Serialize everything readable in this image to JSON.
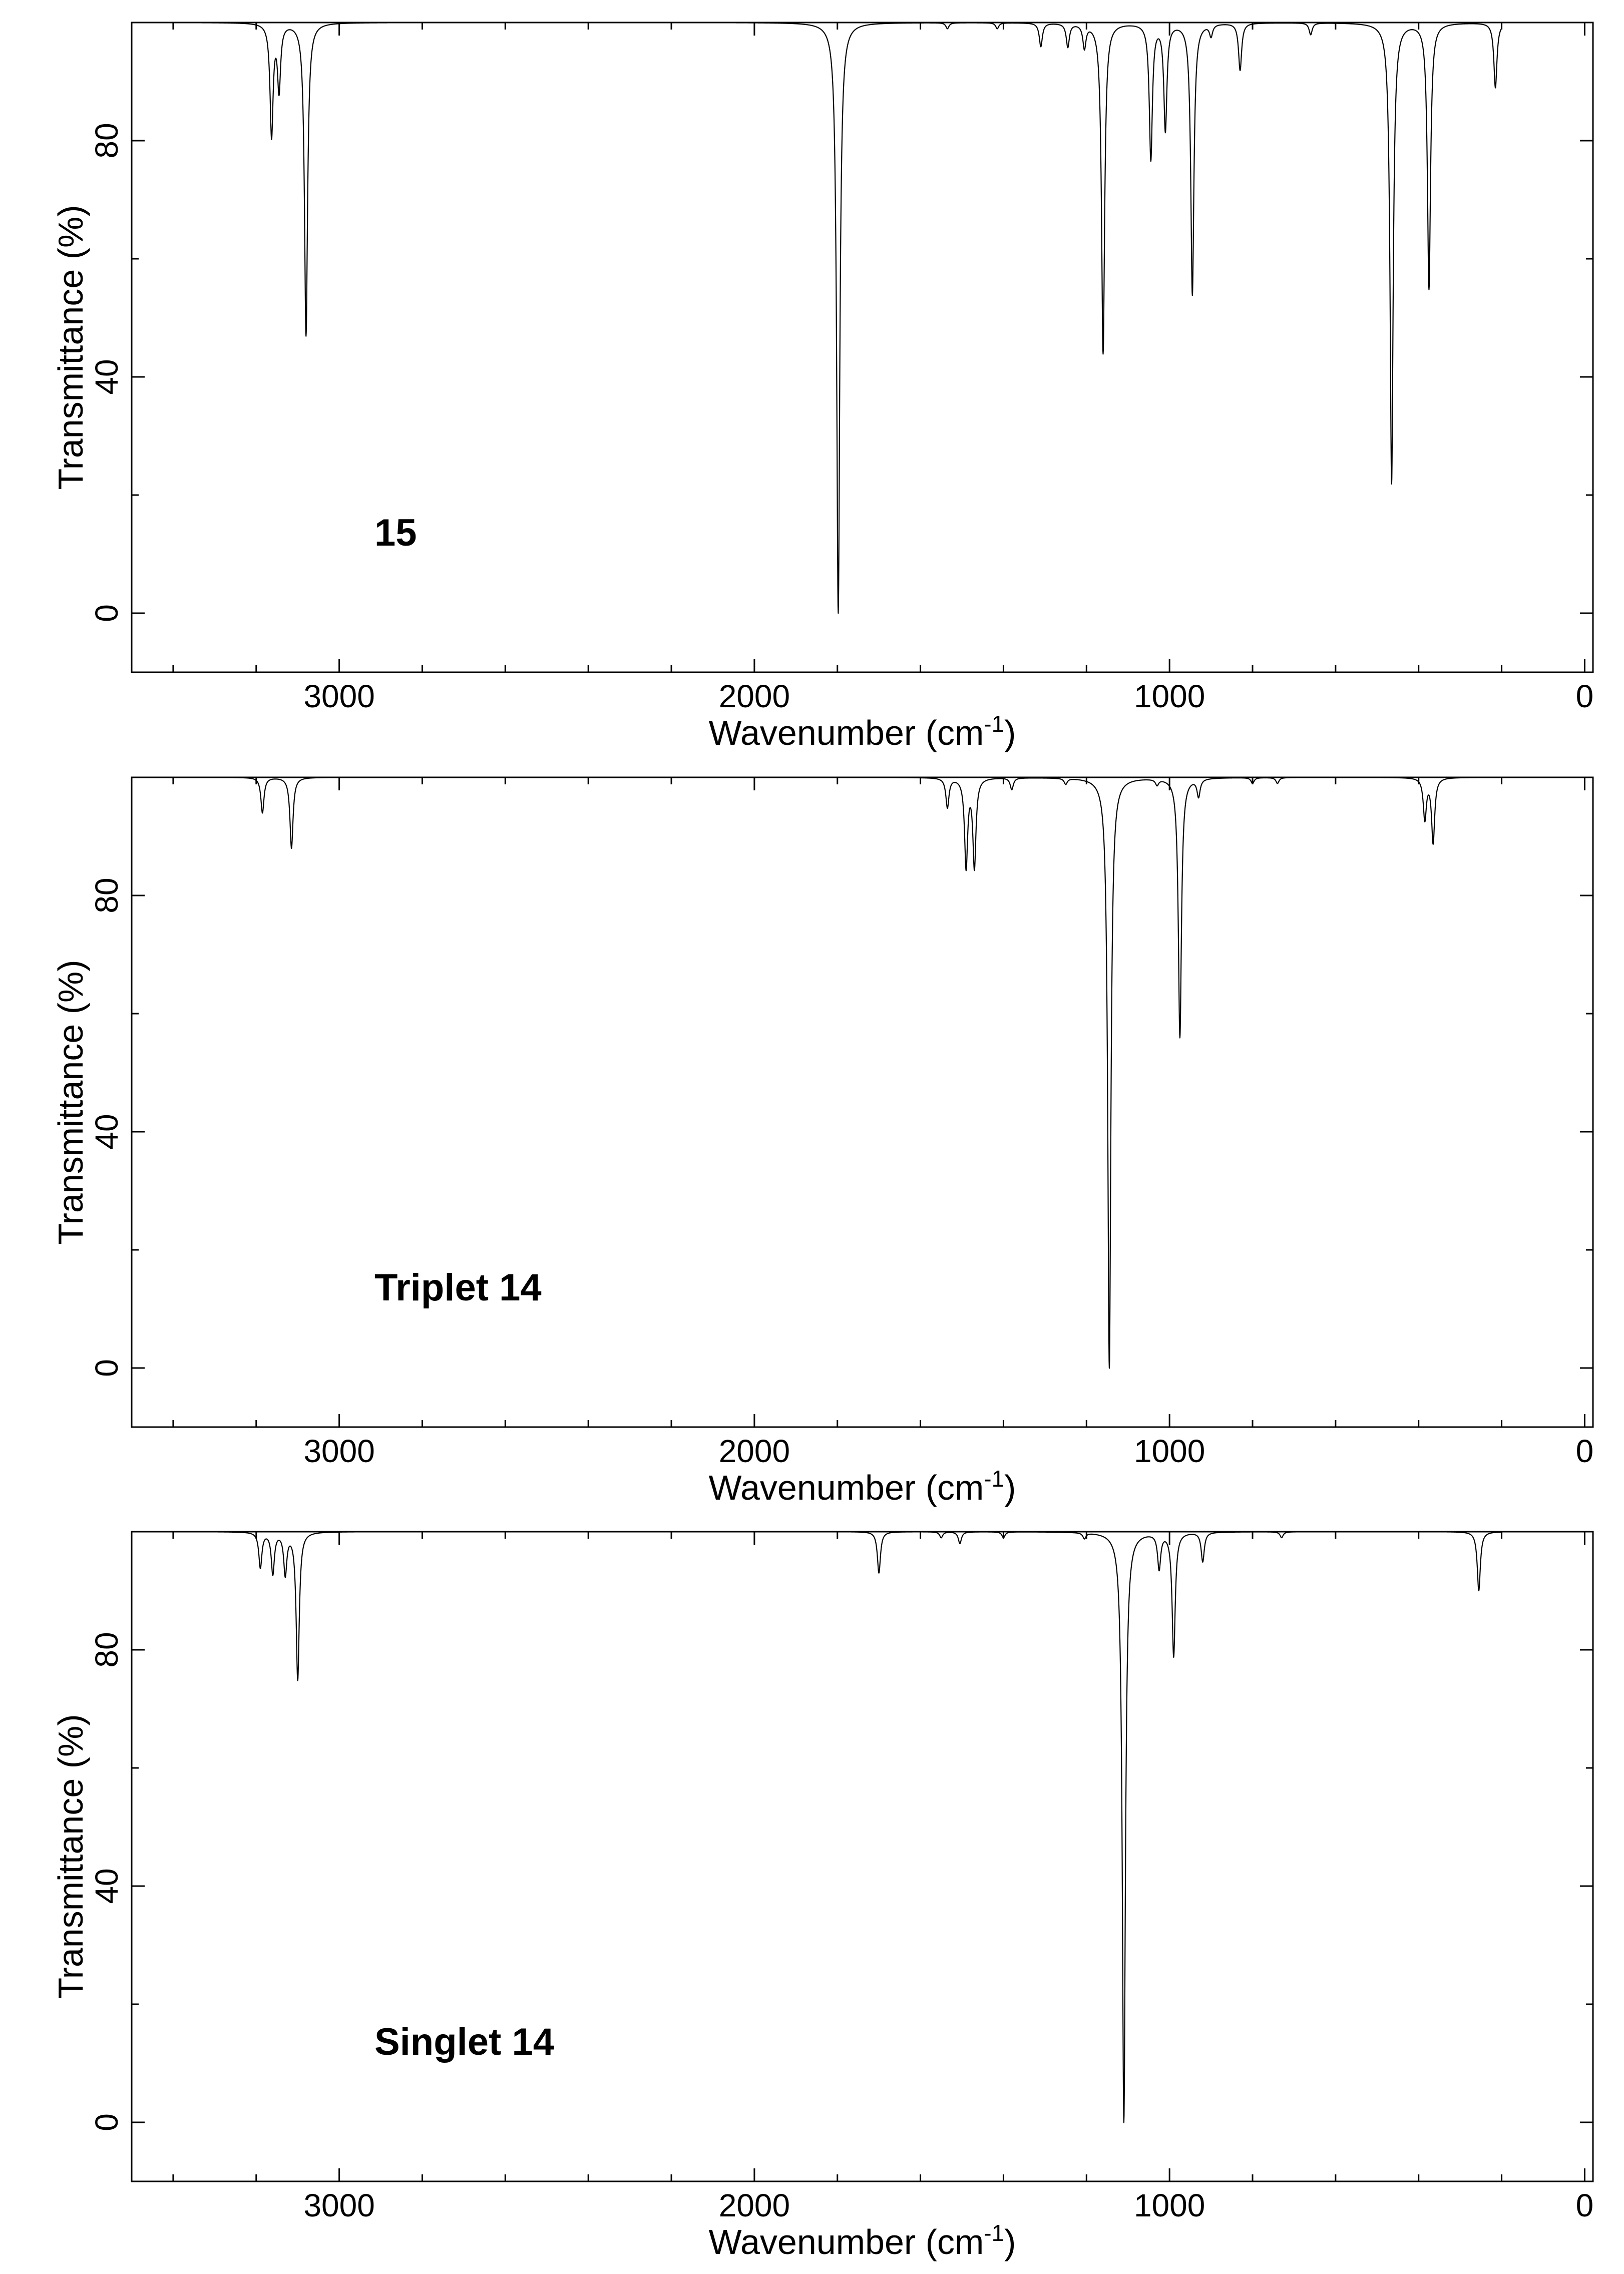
{
  "chart_data": [
    {
      "type": "line",
      "label": "15",
      "xlabel": "Wavenumber (cm-1)",
      "ylabel": "Transmittance (%)",
      "xlim": [
        3500,
        -20
      ],
      "ylim": [
        -10,
        100
      ],
      "xticks": [
        3000,
        2000,
        1000,
        0
      ],
      "yticks": [
        0,
        40,
        80
      ],
      "grid": false,
      "peaks": [
        {
          "x": 3163,
          "y": 81
        },
        {
          "x": 3145,
          "y": 89
        },
        {
          "x": 3080,
          "y": 47
        },
        {
          "x": 1798,
          "y": 0
        },
        {
          "x": 1535,
          "y": 99
        },
        {
          "x": 1415,
          "y": 99
        },
        {
          "x": 1310,
          "y": 96
        },
        {
          "x": 1245,
          "y": 96
        },
        {
          "x": 1205,
          "y": 96
        },
        {
          "x": 1160,
          "y": 44
        },
        {
          "x": 1045,
          "y": 77
        },
        {
          "x": 1010,
          "y": 82
        },
        {
          "x": 945,
          "y": 54
        },
        {
          "x": 900,
          "y": 98
        },
        {
          "x": 830,
          "y": 92
        },
        {
          "x": 660,
          "y": 98
        },
        {
          "x": 465,
          "y": 22
        },
        {
          "x": 375,
          "y": 55
        },
        {
          "x": 215,
          "y": 89
        }
      ]
    },
    {
      "type": "line",
      "label": "Triplet 14",
      "xlabel": "Wavenumber (cm-1)",
      "ylabel": "Transmittance (%)",
      "xlim": [
        3500,
        -20
      ],
      "ylim": [
        -10,
        100
      ],
      "xticks": [
        3000,
        2000,
        1000,
        0
      ],
      "yticks": [
        0,
        40,
        80
      ],
      "grid": false,
      "peaks": [
        {
          "x": 3185,
          "y": 94
        },
        {
          "x": 3115,
          "y": 88
        },
        {
          "x": 1535,
          "y": 95
        },
        {
          "x": 1490,
          "y": 85
        },
        {
          "x": 1470,
          "y": 85
        },
        {
          "x": 1380,
          "y": 98
        },
        {
          "x": 1250,
          "y": 99
        },
        {
          "x": 1145,
          "y": 0
        },
        {
          "x": 1030,
          "y": 99
        },
        {
          "x": 975,
          "y": 56
        },
        {
          "x": 930,
          "y": 97
        },
        {
          "x": 800,
          "y": 99
        },
        {
          "x": 740,
          "y": 99
        },
        {
          "x": 385,
          "y": 93
        },
        {
          "x": 365,
          "y": 89
        },
        {
          "x": 170,
          "y": 99
        }
      ]
    },
    {
      "type": "line",
      "label": "Singlet 14",
      "xlabel": "Wavenumber (cm-1)",
      "ylabel": "Transmittance (%)",
      "xlim": [
        3500,
        -20
      ],
      "ylim": [
        -10,
        100
      ],
      "xticks": [
        3000,
        2000,
        1000,
        0
      ],
      "yticks": [
        0,
        40,
        80
      ],
      "grid": false,
      "peaks": [
        {
          "x": 3190,
          "y": 94
        },
        {
          "x": 3160,
          "y": 93
        },
        {
          "x": 3130,
          "y": 93
        },
        {
          "x": 3100,
          "y": 75
        },
        {
          "x": 1700,
          "y": 93
        },
        {
          "x": 1550,
          "y": 99
        },
        {
          "x": 1505,
          "y": 98
        },
        {
          "x": 1400,
          "y": 99
        },
        {
          "x": 1205,
          "y": 99
        },
        {
          "x": 1110,
          "y": 0
        },
        {
          "x": 1025,
          "y": 94
        },
        {
          "x": 990,
          "y": 79
        },
        {
          "x": 920,
          "y": 95
        },
        {
          "x": 730,
          "y": 99
        },
        {
          "x": 255,
          "y": 90
        }
      ]
    }
  ]
}
